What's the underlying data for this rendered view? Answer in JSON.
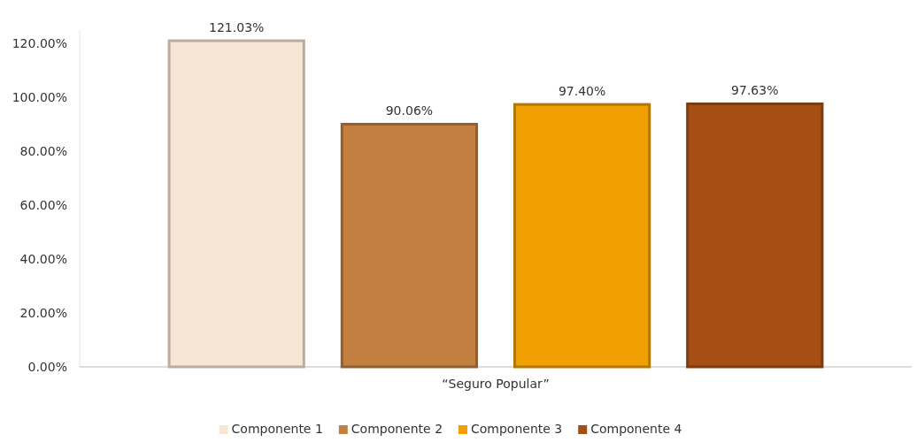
{
  "chart_data": {
    "type": "bar",
    "categories": [
      "“Seguro Popular”"
    ],
    "series": [
      {
        "name": "Componente 1",
        "color": "#f8e6d5",
        "values": [
          121.03
        ],
        "value_labels": [
          "121.03%"
        ]
      },
      {
        "name": "Componente 2",
        "color": "#c27f40",
        "values": [
          90.06
        ],
        "value_labels": [
          "90.06%"
        ]
      },
      {
        "name": "Componente 3",
        "color": "#f0a000",
        "values": [
          97.4
        ],
        "value_labels": [
          "97.40%"
        ]
      },
      {
        "name": "Componente 4",
        "color": "#a54f15",
        "values": [
          97.63
        ],
        "value_labels": [
          "97.63%"
        ]
      }
    ],
    "ylim": [
      0,
      125
    ],
    "yticks": [
      {
        "value": 0,
        "label": "0.00%"
      },
      {
        "value": 20,
        "label": "20.00%"
      },
      {
        "value": 40,
        "label": "40.00%"
      },
      {
        "value": 60,
        "label": "60.00%"
      },
      {
        "value": 80,
        "label": "80.00%"
      },
      {
        "value": 100,
        "label": "100.00%"
      },
      {
        "value": 120,
        "label": "120.00%"
      }
    ],
    "legend": "bottom"
  }
}
